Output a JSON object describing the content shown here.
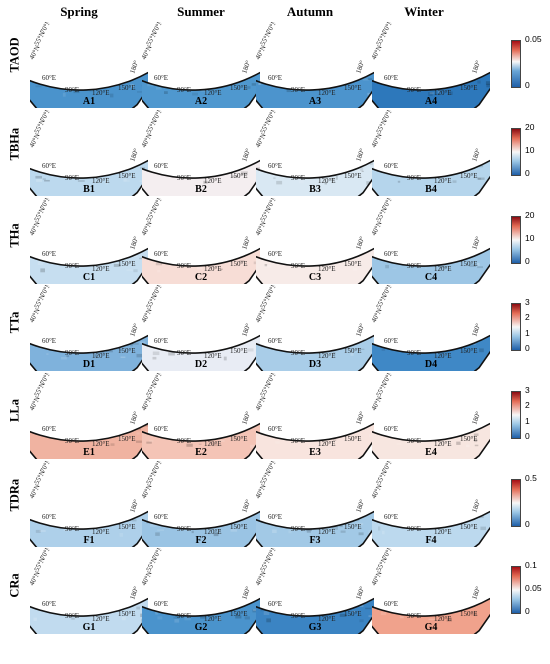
{
  "seasons": [
    "Spring",
    "Summer",
    "Autumn",
    "Winter"
  ],
  "lat_labels": [
    "70°N",
    "55°N",
    "40°N"
  ],
  "lon_labels": [
    "60°E",
    "90°E",
    "120°E",
    "150°E",
    "180°"
  ],
  "chart_data": {
    "type": "heatmap",
    "rows": [
      {
        "label": "TAOD",
        "panels": [
          "A1",
          "A2",
          "A3",
          "A4"
        ],
        "ticks": [
          "0.05",
          "0"
        ],
        "colors": [
          "#4a93cc",
          "#4f98cf",
          "#4c94cd",
          "#2d78bb"
        ]
      },
      {
        "label": "TBHa",
        "panels": [
          "B1",
          "B2",
          "B3",
          "B4"
        ],
        "ticks": [
          "20",
          "10",
          "0"
        ],
        "colors": [
          "#bcd9ee",
          "#f4eef0",
          "#d9e8f3",
          "#b5d5ec"
        ]
      },
      {
        "label": "THa",
        "panels": [
          "C1",
          "C2",
          "C3",
          "C4"
        ],
        "ticks": [
          "20",
          "10",
          "0"
        ],
        "colors": [
          "#c6def0",
          "#f7ddd6",
          "#f7ebe8",
          "#9dc6e5"
        ]
      },
      {
        "label": "TTa",
        "panels": [
          "D1",
          "D2",
          "D3",
          "D4"
        ],
        "ticks": [
          "3",
          "2",
          "1",
          "0"
        ],
        "colors": [
          "#7fb2dc",
          "#e8ecf4",
          "#a9cde8",
          "#3f88c6"
        ]
      },
      {
        "label": "LLa",
        "panels": [
          "E1",
          "E2",
          "E3",
          "E4"
        ],
        "ticks": [
          "3",
          "2",
          "1",
          "0"
        ],
        "colors": [
          "#f0b3a1",
          "#f4c4b6",
          "#f8e4de",
          "#f7e6e0"
        ]
      },
      {
        "label": "TDRa",
        "panels": [
          "F1",
          "F2",
          "F3",
          "F4"
        ],
        "ticks": [
          "0.5",
          "0"
        ],
        "colors": [
          "#aed0ea",
          "#9ac4e4",
          "#a2c9e6",
          "#bcd9ee"
        ]
      },
      {
        "label": "CRa",
        "panels": [
          "G1",
          "G2",
          "G3",
          "G4"
        ],
        "ticks": [
          "0.1",
          "0.05",
          "0"
        ],
        "colors": [
          "#c1dbef",
          "#4a93cc",
          "#3b84c3",
          "#f0a28c"
        ]
      }
    ]
  }
}
